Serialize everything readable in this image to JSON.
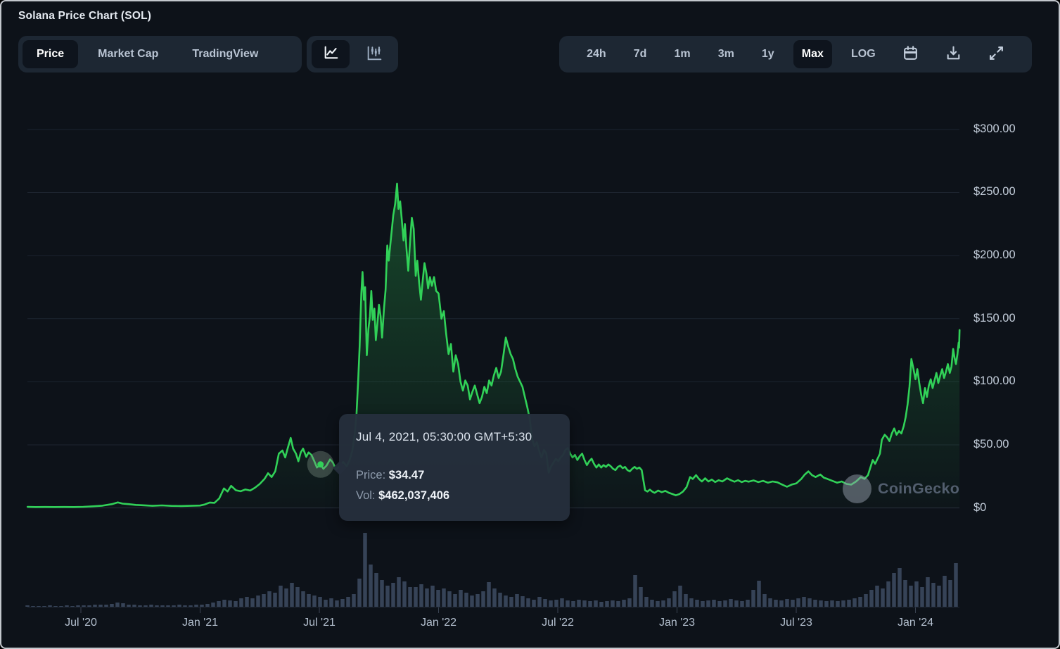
{
  "header": {
    "title": "Solana Price Chart (SOL)"
  },
  "toolbar": {
    "left_tabs": [
      {
        "label": "Price",
        "selected": true
      },
      {
        "label": "Market Cap",
        "selected": false
      },
      {
        "label": "TradingView",
        "selected": false
      }
    ],
    "chart_types": [
      {
        "name": "line-chart",
        "selected": true
      },
      {
        "name": "candlestick-chart",
        "selected": false
      }
    ],
    "ranges": [
      {
        "label": "24h",
        "selected": false
      },
      {
        "label": "7d",
        "selected": false
      },
      {
        "label": "1m",
        "selected": false
      },
      {
        "label": "3m",
        "selected": false
      },
      {
        "label": "1y",
        "selected": false
      },
      {
        "label": "Max",
        "selected": true
      },
      {
        "label": "LOG",
        "selected": false
      }
    ],
    "icon_buttons": [
      "calendar",
      "download",
      "fullscreen"
    ]
  },
  "tooltip": {
    "datetime": "Jul 4, 2021, 05:30:00 GMT+5:30",
    "price_label": "Price:",
    "price_value": "$34.47",
    "vol_label": "Vol:",
    "vol_value": "$462,037,406"
  },
  "watermark": {
    "label": "CoinGecko"
  },
  "colors": {
    "background": "#0d1219",
    "panel": "#1d2733",
    "selected_button": "#0e141d",
    "accent_green": "#31d158",
    "gridline": "#1d2430",
    "zero_line": "#272f3d",
    "volume_bar": "#364357",
    "tooltip_bg": "#252e3c"
  },
  "chart_data": {
    "type": "line",
    "title": "Solana Price Chart (SOL) — Max range",
    "x_unit": "year_fraction",
    "x_range": [
      2020.276,
      2024.185
    ],
    "ylim": [
      0,
      300
    ],
    "grid": true,
    "y_ticks": [
      {
        "label": "$300.00",
        "value": 300
      },
      {
        "label": "$250.00",
        "value": 250
      },
      {
        "label": "$200.00",
        "value": 200
      },
      {
        "label": "$150.00",
        "value": 150
      },
      {
        "label": "$100.00",
        "value": 100
      },
      {
        "label": "$50.00",
        "value": 50
      },
      {
        "label": "$0",
        "value": 0
      }
    ],
    "x_ticks": [
      {
        "label": "Jul '20",
        "value": 2020.5
      },
      {
        "label": "Jan '21",
        "value": 2021.0
      },
      {
        "label": "Jul '21",
        "value": 2021.5
      },
      {
        "label": "Jan '22",
        "value": 2022.0
      },
      {
        "label": "Jul '22",
        "value": 2022.5
      },
      {
        "label": "Jan '23",
        "value": 2023.0
      },
      {
        "label": "Jul '23",
        "value": 2023.5
      },
      {
        "label": "Jan '24",
        "value": 2024.0
      }
    ],
    "selected_point": {
      "x": 2021.505,
      "price": 34.47,
      "volume_usd": 462037406
    },
    "price_series": [
      [
        2020.276,
        0.9
      ],
      [
        2020.31,
        0.7
      ],
      [
        2020.35,
        0.8
      ],
      [
        2020.39,
        0.7
      ],
      [
        2020.43,
        0.8
      ],
      [
        2020.47,
        0.7
      ],
      [
        2020.51,
        0.9
      ],
      [
        2020.55,
        1.3
      ],
      [
        2020.59,
        1.8
      ],
      [
        2020.63,
        3.0
      ],
      [
        2020.655,
        4.4
      ],
      [
        2020.675,
        3.4
      ],
      [
        2020.7,
        3.0
      ],
      [
        2020.73,
        2.4
      ],
      [
        2020.76,
        2.1
      ],
      [
        2020.8,
        1.7
      ],
      [
        2020.84,
        2.0
      ],
      [
        2020.88,
        1.6
      ],
      [
        2020.92,
        1.5
      ],
      [
        2020.96,
        1.7
      ],
      [
        2021.0,
        1.9
      ],
      [
        2021.02,
        2.8
      ],
      [
        2021.04,
        4.3
      ],
      [
        2021.06,
        4.0
      ],
      [
        2021.08,
        7.5
      ],
      [
        2021.1,
        15.5
      ],
      [
        2021.115,
        13
      ],
      [
        2021.13,
        17.5
      ],
      [
        2021.15,
        14
      ],
      [
        2021.17,
        13.2
      ],
      [
        2021.19,
        14.6
      ],
      [
        2021.21,
        13.8
      ],
      [
        2021.23,
        16
      ],
      [
        2021.25,
        19
      ],
      [
        2021.27,
        23
      ],
      [
        2021.285,
        27.5
      ],
      [
        2021.3,
        24.5
      ],
      [
        2021.315,
        29
      ],
      [
        2021.33,
        43
      ],
      [
        2021.345,
        45.5
      ],
      [
        2021.357,
        40
      ],
      [
        2021.367,
        47
      ],
      [
        2021.38,
        55.5
      ],
      [
        2021.39,
        47
      ],
      [
        2021.402,
        43
      ],
      [
        2021.412,
        37
      ],
      [
        2021.422,
        44
      ],
      [
        2021.432,
        47
      ],
      [
        2021.445,
        40.5
      ],
      [
        2021.455,
        44
      ],
      [
        2021.467,
        42
      ],
      [
        2021.478,
        37.5
      ],
      [
        2021.49,
        32
      ],
      [
        2021.505,
        34.47
      ],
      [
        2021.517,
        31
      ],
      [
        2021.53,
        33.5
      ],
      [
        2021.545,
        38.5
      ],
      [
        2021.557,
        36
      ],
      [
        2021.57,
        30.5
      ],
      [
        2021.585,
        33
      ],
      [
        2021.6,
        36.5
      ],
      [
        2021.615,
        33
      ],
      [
        2021.627,
        38
      ],
      [
        2021.638,
        45
      ],
      [
        2021.648,
        58
      ],
      [
        2021.656,
        75
      ],
      [
        2021.663,
        102
      ],
      [
        2021.669,
        128
      ],
      [
        2021.676,
        170
      ],
      [
        2021.681,
        187
      ],
      [
        2021.687,
        165
      ],
      [
        2021.692,
        175
      ],
      [
        2021.699,
        121
      ],
      [
        2021.706,
        142
      ],
      [
        2021.712,
        152
      ],
      [
        2021.718,
        172
      ],
      [
        2021.724,
        149
      ],
      [
        2021.731,
        158
      ],
      [
        2021.737,
        133
      ],
      [
        2021.744,
        147
      ],
      [
        2021.75,
        161
      ],
      [
        2021.757,
        152
      ],
      [
        2021.763,
        135
      ],
      [
        2021.771,
        158
      ],
      [
        2021.778,
        173
      ],
      [
        2021.785,
        208
      ],
      [
        2021.791,
        196
      ],
      [
        2021.8,
        213
      ],
      [
        2021.81,
        232
      ],
      [
        2021.818,
        241
      ],
      [
        2021.826,
        257
      ],
      [
        2021.832,
        237
      ],
      [
        2021.839,
        243
      ],
      [
        2021.846,
        228
      ],
      [
        2021.853,
        212
      ],
      [
        2021.859,
        225
      ],
      [
        2021.866,
        204
      ],
      [
        2021.873,
        188
      ],
      [
        2021.881,
        213
      ],
      [
        2021.888,
        230
      ],
      [
        2021.896,
        221
      ],
      [
        2021.904,
        184
      ],
      [
        2021.911,
        196
      ],
      [
        2021.919,
        178
      ],
      [
        2021.926,
        165
      ],
      [
        2021.934,
        181
      ],
      [
        2021.941,
        194
      ],
      [
        2021.949,
        186
      ],
      [
        2021.956,
        174
      ],
      [
        2021.964,
        183
      ],
      [
        2021.972,
        176
      ],
      [
        2021.981,
        183
      ],
      [
        2021.99,
        172
      ],
      [
        2022.0,
        170
      ],
      [
        2022.012,
        150
      ],
      [
        2022.022,
        156
      ],
      [
        2022.032,
        138
      ],
      [
        2022.042,
        122
      ],
      [
        2022.052,
        130
      ],
      [
        2022.062,
        108
      ],
      [
        2022.072,
        121
      ],
      [
        2022.082,
        114
      ],
      [
        2022.092,
        100
      ],
      [
        2022.102,
        93
      ],
      [
        2022.112,
        101
      ],
      [
        2022.122,
        97
      ],
      [
        2022.132,
        86
      ],
      [
        2022.142,
        92
      ],
      [
        2022.152,
        97
      ],
      [
        2022.162,
        90
      ],
      [
        2022.172,
        83
      ],
      [
        2022.182,
        88
      ],
      [
        2022.192,
        96
      ],
      [
        2022.202,
        91
      ],
      [
        2022.212,
        101
      ],
      [
        2022.222,
        97
      ],
      [
        2022.232,
        105
      ],
      [
        2022.242,
        111
      ],
      [
        2022.252,
        103
      ],
      [
        2022.262,
        108
      ],
      [
        2022.272,
        121
      ],
      [
        2022.282,
        135
      ],
      [
        2022.292,
        128
      ],
      [
        2022.302,
        122
      ],
      [
        2022.312,
        118
      ],
      [
        2022.322,
        110
      ],
      [
        2022.332,
        104
      ],
      [
        2022.342,
        100
      ],
      [
        2022.352,
        96
      ],
      [
        2022.362,
        88
      ],
      [
        2022.372,
        80
      ],
      [
        2022.382,
        71
      ],
      [
        2022.392,
        55
      ],
      [
        2022.402,
        49
      ],
      [
        2022.412,
        52
      ],
      [
        2022.422,
        45
      ],
      [
        2022.432,
        40
      ],
      [
        2022.442,
        46
      ],
      [
        2022.452,
        43
      ],
      [
        2022.462,
        28
      ],
      [
        2022.472,
        33
      ],
      [
        2022.482,
        36
      ],
      [
        2022.492,
        39
      ],
      [
        2022.502,
        37
      ],
      [
        2022.512,
        40
      ],
      [
        2022.522,
        42
      ],
      [
        2022.532,
        46
      ],
      [
        2022.542,
        47.5
      ],
      [
        2022.552,
        43
      ],
      [
        2022.562,
        40
      ],
      [
        2022.572,
        42
      ],
      [
        2022.582,
        38
      ],
      [
        2022.592,
        41
      ],
      [
        2022.602,
        43
      ],
      [
        2022.612,
        38
      ],
      [
        2022.622,
        34
      ],
      [
        2022.632,
        37
      ],
      [
        2022.642,
        39
      ],
      [
        2022.652,
        35
      ],
      [
        2022.662,
        32
      ],
      [
        2022.672,
        34.5
      ],
      [
        2022.682,
        32
      ],
      [
        2022.692,
        34
      ],
      [
        2022.702,
        32.5
      ],
      [
        2022.712,
        34.5
      ],
      [
        2022.722,
        33
      ],
      [
        2022.732,
        31
      ],
      [
        2022.742,
        30
      ],
      [
        2022.752,
        32.5
      ],
      [
        2022.762,
        33.5
      ],
      [
        2022.772,
        31.5
      ],
      [
        2022.782,
        32.5
      ],
      [
        2022.792,
        30
      ],
      [
        2022.802,
        29
      ],
      [
        2022.812,
        31
      ],
      [
        2022.822,
        32.5
      ],
      [
        2022.832,
        31
      ],
      [
        2022.842,
        32
      ],
      [
        2022.852,
        30
      ],
      [
        2022.859,
        22
      ],
      [
        2022.866,
        14
      ],
      [
        2022.876,
        13
      ],
      [
        2022.886,
        14.5
      ],
      [
        2022.896,
        13
      ],
      [
        2022.906,
        12
      ],
      [
        2022.921,
        13.8
      ],
      [
        2022.936,
        12.5
      ],
      [
        2022.951,
        13.5
      ],
      [
        2022.966,
        12
      ],
      [
        2022.981,
        11
      ],
      [
        2022.995,
        10
      ],
      [
        2023.01,
        11
      ],
      [
        2023.025,
        13
      ],
      [
        2023.04,
        16.5
      ],
      [
        2023.055,
        24.5
      ],
      [
        2023.066,
        23
      ],
      [
        2023.08,
        26
      ],
      [
        2023.092,
        23
      ],
      [
        2023.104,
        21
      ],
      [
        2023.118,
        23.5
      ],
      [
        2023.132,
        21
      ],
      [
        2023.146,
        22.5
      ],
      [
        2023.16,
        20.5
      ],
      [
        2023.175,
        22
      ],
      [
        2023.19,
        21
      ],
      [
        2023.21,
        23.5
      ],
      [
        2023.226,
        22
      ],
      [
        2023.241,
        20.8
      ],
      [
        2023.256,
        22
      ],
      [
        2023.271,
        20.5
      ],
      [
        2023.286,
        21.5
      ],
      [
        2023.301,
        20.8
      ],
      [
        2023.321,
        21.8
      ],
      [
        2023.341,
        20.5
      ],
      [
        2023.361,
        21.5
      ],
      [
        2023.381,
        20
      ],
      [
        2023.401,
        21
      ],
      [
        2023.421,
        20.3
      ],
      [
        2023.441,
        18.5
      ],
      [
        2023.461,
        16.8
      ],
      [
        2023.481,
        18.5
      ],
      [
        2023.501,
        19.5
      ],
      [
        2023.521,
        23
      ],
      [
        2023.536,
        26.5
      ],
      [
        2023.551,
        29
      ],
      [
        2023.566,
        26
      ],
      [
        2023.581,
        24.5
      ],
      [
        2023.601,
        26.5
      ],
      [
        2023.616,
        24
      ],
      [
        2023.631,
        23
      ],
      [
        2023.651,
        21.5
      ],
      [
        2023.671,
        20
      ],
      [
        2023.691,
        21
      ],
      [
        2023.711,
        19
      ],
      [
        2023.731,
        18.5
      ],
      [
        2023.751,
        21
      ],
      [
        2023.771,
        24.5
      ],
      [
        2023.786,
        23
      ],
      [
        2023.801,
        26
      ],
      [
        2023.811,
        32
      ],
      [
        2023.821,
        38
      ],
      [
        2023.831,
        35
      ],
      [
        2023.841,
        39
      ],
      [
        2023.851,
        43
      ],
      [
        2023.859,
        54
      ],
      [
        2023.871,
        58
      ],
      [
        2023.881,
        56
      ],
      [
        2023.891,
        53
      ],
      [
        2023.901,
        59
      ],
      [
        2023.911,
        63
      ],
      [
        2023.921,
        58
      ],
      [
        2023.931,
        61
      ],
      [
        2023.941,
        59
      ],
      [
        2023.951,
        65
      ],
      [
        2023.959,
        72
      ],
      [
        2023.967,
        82
      ],
      [
        2023.975,
        96
      ],
      [
        2023.983,
        118
      ],
      [
        2023.991,
        111
      ],
      [
        2024.0,
        102
      ],
      [
        2024.008,
        110
      ],
      [
        2024.016,
        99
      ],
      [
        2024.024,
        90
      ],
      [
        2024.032,
        83
      ],
      [
        2024.04,
        95
      ],
      [
        2024.048,
        88
      ],
      [
        2024.056,
        97
      ],
      [
        2024.064,
        102
      ],
      [
        2024.072,
        95
      ],
      [
        2024.08,
        101
      ],
      [
        2024.088,
        107
      ],
      [
        2024.096,
        99
      ],
      [
        2024.104,
        105
      ],
      [
        2024.112,
        110
      ],
      [
        2024.12,
        103
      ],
      [
        2024.128,
        108
      ],
      [
        2024.136,
        114
      ],
      [
        2024.144,
        107
      ],
      [
        2024.151,
        112
      ],
      [
        2024.158,
        126
      ],
      [
        2024.164,
        119
      ],
      [
        2024.17,
        114
      ],
      [
        2024.176,
        122
      ],
      [
        2024.181,
        131
      ],
      [
        2024.183,
        127
      ],
      [
        2024.185,
        141
      ]
    ],
    "volume_bars_relative": {
      "note": "relative heights, unlabeled volume sub-panel",
      "heights": [
        2,
        1,
        1,
        1,
        2,
        1,
        1,
        2,
        1,
        2,
        2,
        2,
        3,
        3,
        3,
        4,
        6,
        5,
        3,
        3,
        2,
        2,
        3,
        2,
        2,
        2,
        2,
        3,
        2,
        2,
        3,
        3,
        4,
        6,
        8,
        10,
        9,
        8,
        12,
        14,
        12,
        16,
        18,
        22,
        20,
        30,
        26,
        34,
        28,
        22,
        18,
        16,
        14,
        10,
        12,
        9,
        11,
        14,
        18,
        40,
        105,
        60,
        48,
        38,
        30,
        34,
        42,
        36,
        28,
        28,
        32,
        26,
        30,
        24,
        26,
        22,
        18,
        24,
        20,
        16,
        18,
        22,
        35,
        26,
        20,
        16,
        14,
        18,
        15,
        12,
        10,
        14,
        11,
        9,
        10,
        12,
        9,
        8,
        10,
        9,
        8,
        9,
        7,
        8,
        9,
        8,
        10,
        12,
        45,
        28,
        14,
        10,
        8,
        9,
        12,
        22,
        30,
        18,
        12,
        10,
        8,
        9,
        10,
        8,
        9,
        11,
        9,
        8,
        10,
        24,
        37,
        18,
        12,
        10,
        9,
        11,
        10,
        12,
        14,
        12,
        10,
        9,
        8,
        9,
        8,
        9,
        10,
        12,
        14,
        18,
        24,
        30,
        26,
        36,
        48,
        55,
        38,
        30,
        36,
        28,
        42,
        34,
        30,
        44,
        38,
        62
      ]
    },
    "legend": [],
    "series_color": "#31d158"
  }
}
